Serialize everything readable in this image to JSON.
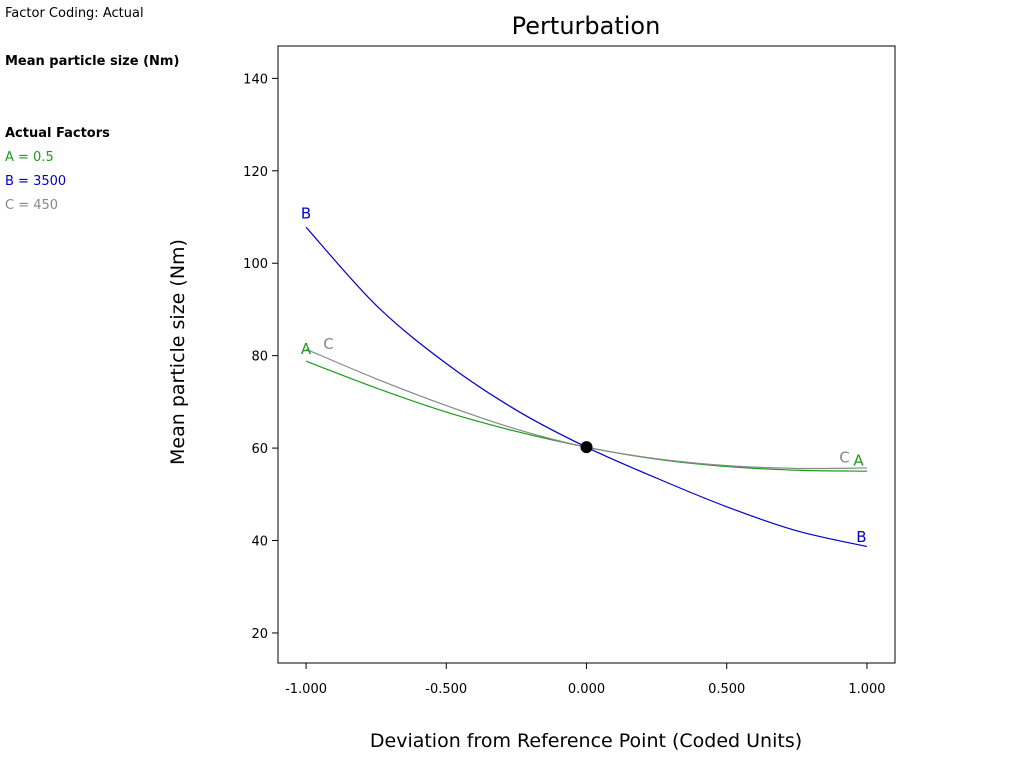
{
  "factor_coding": "Factor Coding: Actual",
  "response_name": "Mean particle size (Nm)",
  "actual_factors_title": "Actual Factors",
  "factors": [
    {
      "text": "A = 0.5",
      "color": "#1a9c1a"
    },
    {
      "text": "B = 3500",
      "color": "#0000cc"
    },
    {
      "text": "C = 450",
      "color": "#888888"
    }
  ],
  "chart_data": {
    "type": "line",
    "title": "Perturbation",
    "xlabel": "Deviation from Reference Point (Coded Units)",
    "ylabel": "Mean particle size (Nm)",
    "xlim": [
      -1.1,
      1.1
    ],
    "ylim": [
      13.5,
      147
    ],
    "x_ticks": [
      -1.0,
      -0.5,
      0.0,
      0.5,
      1.0
    ],
    "x_tick_labels": [
      "-1.000",
      "-0.500",
      "0.000",
      "0.500",
      "1.000"
    ],
    "y_ticks": [
      20,
      40,
      60,
      80,
      100,
      120,
      140
    ],
    "y_tick_labels": [
      "20",
      "40",
      "60",
      "80",
      "100",
      "120",
      "140"
    ],
    "reference_point": {
      "x": 0.0,
      "y": 60.2
    },
    "series": [
      {
        "name": "A",
        "color": "#1a9c1a",
        "x": [
          -1.0,
          -0.75,
          -0.5,
          -0.25,
          0.0,
          0.25,
          0.5,
          0.75,
          1.0
        ],
        "y": [
          78.8,
          73.0,
          67.8,
          63.6,
          60.2,
          57.6,
          56.0,
          55.2,
          55.0
        ]
      },
      {
        "name": "B",
        "color": "#0000cc",
        "x": [
          -1.0,
          -0.75,
          -0.5,
          -0.25,
          0.0,
          0.25,
          0.5,
          0.75,
          1.0
        ],
        "y": [
          107.8,
          90.9,
          78.3,
          68.2,
          60.2,
          53.5,
          47.3,
          42.1,
          38.7
        ]
      },
      {
        "name": "C",
        "color": "#888888",
        "x": [
          -1.0,
          -0.75,
          -0.5,
          -0.25,
          0.0,
          0.25,
          0.5,
          0.75,
          1.0
        ],
        "y": [
          81.4,
          75.0,
          69.2,
          64.1,
          60.2,
          57.7,
          56.2,
          55.6,
          55.7
        ]
      }
    ],
    "curve_labels": [
      {
        "text": "B",
        "series": "B",
        "x": -1.0,
        "y": 110.5
      },
      {
        "text": "A",
        "series": "A",
        "x": -1.0,
        "y": 81.2
      },
      {
        "text": "C",
        "series": "C",
        "x": -0.92,
        "y": 82.3
      },
      {
        "text": "C",
        "series": "C",
        "x": 0.92,
        "y": 57.7
      },
      {
        "text": "A",
        "series": "A",
        "x": 0.97,
        "y": 57.1
      },
      {
        "text": "B",
        "series": "B",
        "x": 0.98,
        "y": 40.5
      }
    ],
    "grid": false,
    "legend": "none"
  }
}
